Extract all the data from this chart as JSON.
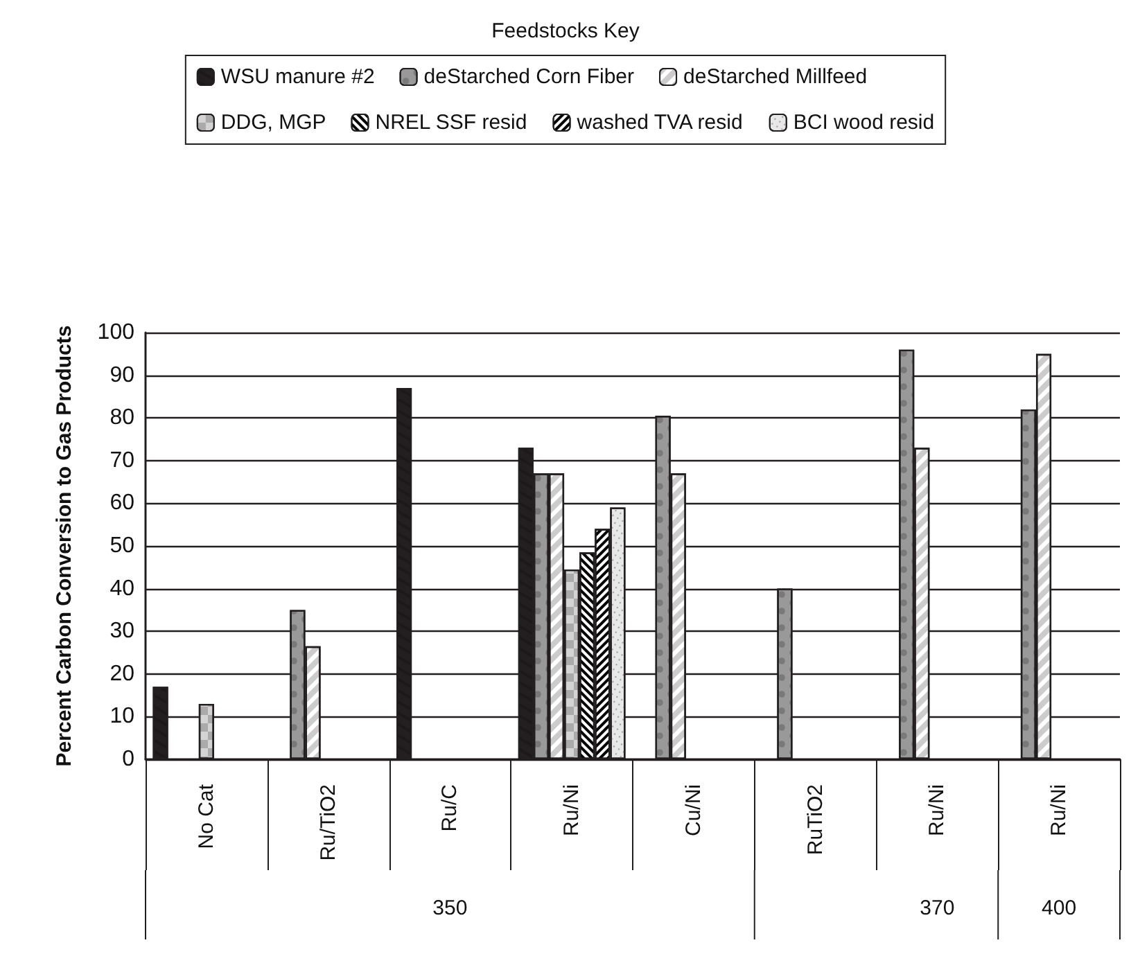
{
  "chart_data": {
    "type": "bar",
    "legend_title": "Feedstocks Key",
    "ylabel": "Percent Carbon Conversion to Gas Products",
    "categories": [
      "No Cat",
      "Ru/TiO2",
      "Ru/C",
      "Ru/Ni",
      "Cu/Ni",
      "RuTiO2",
      "Ru/Ni",
      "Ru/Ni"
    ],
    "series": [
      {
        "name": "WSU manure #2",
        "color": "#231f20",
        "values": [
          17,
          null,
          87,
          73,
          null,
          null,
          null,
          null
        ]
      },
      {
        "name": "deStarched Corn Fiber",
        "color": "#999999",
        "values": [
          null,
          35,
          null,
          67,
          80.5,
          40,
          96,
          82
        ]
      },
      {
        "name": "deStarched Millfeed",
        "color": "#ffffff",
        "values": [
          null,
          26.5,
          null,
          67,
          67,
          null,
          73,
          95
        ]
      },
      {
        "name": "DDG, MGP",
        "color": "#d4d4d4",
        "values": [
          13,
          null,
          null,
          44.5,
          null,
          null,
          null,
          null
        ]
      },
      {
        "name": "NREL SSF resid",
        "color": "#ffffff",
        "values": [
          null,
          null,
          null,
          48.5,
          null,
          null,
          null,
          null
        ]
      },
      {
        "name": "washed TVA resid",
        "color": "#ffffff",
        "values": [
          null,
          null,
          null,
          54,
          null,
          null,
          null,
          null
        ]
      },
      {
        "name": "BCI wood resid",
        "color": "#e8e8e8",
        "values": [
          null,
          null,
          null,
          59,
          null,
          null,
          null,
          null
        ]
      }
    ],
    "ylim": [
      0,
      100
    ],
    "yticks": [
      0,
      10,
      20,
      30,
      40,
      50,
      60,
      70,
      80,
      90,
      100
    ],
    "grid": "y",
    "legend": "top",
    "annotations": [
      "350",
      "370",
      "400"
    ]
  }
}
